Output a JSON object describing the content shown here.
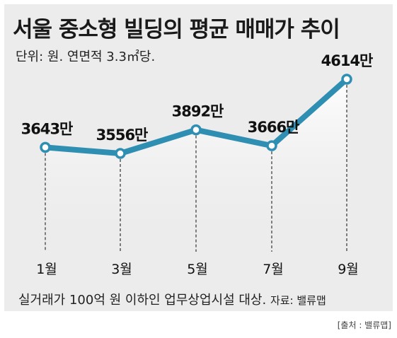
{
  "title": "서울 중소형 빌딩의 평균 매매가 추이",
  "unit_note": "단위: 원. 연면적 3.3㎡당.",
  "footnote": "실거래가 100억 원 이하인 업무상업시설 대상.",
  "source_inline": "자료: 밸류맵",
  "credit": "[출처 : 밸류맵]",
  "colors": {
    "line": "#2f8fb3",
    "panel": "#ececec",
    "marker_fill": "#ffffff"
  },
  "chart_data": {
    "type": "line",
    "categories": [
      "1월",
      "3월",
      "5월",
      "7월",
      "9월"
    ],
    "values": [
      3643,
      3556,
      3892,
      3666,
      4614
    ],
    "data_labels": [
      "3643만",
      "3556만",
      "3892만",
      "3666만",
      "4614만"
    ],
    "grid": false,
    "legend": "none"
  }
}
